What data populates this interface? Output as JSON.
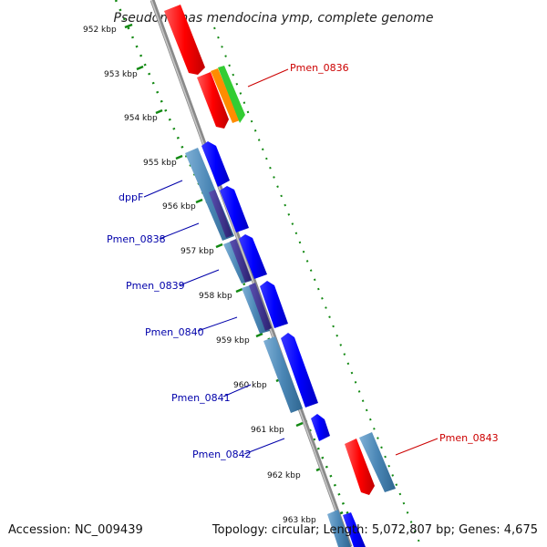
{
  "title": "Pseudomonas mendocina ymp, complete genome",
  "footer": {
    "accession": "Accession: NC_009439",
    "topology": "Topology: circular; Length: 5,072,807 bp; Genes: 4,675"
  },
  "kbp_ticks": [
    "952 kbp",
    "953 kbp",
    "954 kbp",
    "955 kbp",
    "956 kbp",
    "957 kbp",
    "958 kbp",
    "959 kbp",
    "960 kbp",
    "961 kbp",
    "962 kbp",
    "963 kbp"
  ],
  "gene_labels": [
    {
      "text": "Pmen_0836",
      "color": "#cc0000"
    },
    {
      "text": "dppF",
      "color": "#0000aa"
    },
    {
      "text": "Pmen_0838",
      "color": "#0000aa"
    },
    {
      "text": "Pmen_0839",
      "color": "#0000aa"
    },
    {
      "text": "Pmen_0840",
      "color": "#0000aa"
    },
    {
      "text": "Pmen_0841",
      "color": "#0000aa"
    },
    {
      "text": "Pmen_0842",
      "color": "#0000aa"
    },
    {
      "text": "Pmen_0843",
      "color": "#cc0000"
    }
  ],
  "colors": {
    "backbone": "#888888",
    "forward_gene": "#ff0000",
    "reverse_gene": "#0000ff",
    "steelblue_gene": "#4a86b5",
    "dark_gene": "#3a2f8a",
    "orange_gene": "#ff8c00",
    "green_gene": "#33cc33",
    "dotted_track": "#118811"
  }
}
